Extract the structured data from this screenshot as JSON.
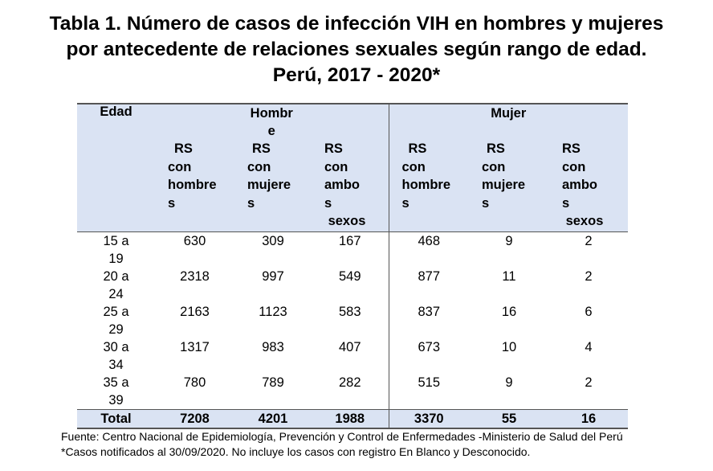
{
  "title": {
    "line1": "Tabla 1. Número de casos de infección VIH en hombres y mujeres",
    "line2": "por antecedente de relaciones sexuales según rango de edad.",
    "line3": "Perú, 2017 - 2020*"
  },
  "table": {
    "edad_label": "Edad",
    "groups": [
      {
        "label_lines": [
          "Hombr",
          "e"
        ]
      },
      {
        "label_lines": [
          "Mujer"
        ]
      }
    ],
    "subheaders": [
      {
        "lines": [
          "RS",
          "con",
          "hombre",
          "s"
        ]
      },
      {
        "lines": [
          "RS",
          "con",
          "mujere",
          "s"
        ]
      },
      {
        "lines": [
          "RS",
          "con",
          "ambo",
          "s",
          " sexos"
        ]
      },
      {
        "lines": [
          "RS",
          "con",
          "hombre",
          "s"
        ]
      },
      {
        "lines": [
          "RS",
          "con",
          "mujere",
          "s"
        ]
      },
      {
        "lines": [
          "RS",
          "con",
          "ambo",
          "s",
          " sexos"
        ]
      }
    ],
    "rows": [
      {
        "age": [
          "15 a",
          "19"
        ],
        "values": [
          "630",
          "309",
          "167",
          "468",
          "9",
          "2"
        ]
      },
      {
        "age": [
          "20 a",
          "24"
        ],
        "values": [
          "2318",
          "997",
          "549",
          "877",
          "11",
          "2"
        ]
      },
      {
        "age": [
          "25 a",
          "29"
        ],
        "values": [
          "2163",
          "1123",
          "583",
          "837",
          "16",
          "6"
        ]
      },
      {
        "age": [
          "30 a",
          "34"
        ],
        "values": [
          "1317",
          "983",
          "407",
          "673",
          "10",
          "4"
        ]
      },
      {
        "age": [
          "35 a",
          "39"
        ],
        "values": [
          "780",
          "789",
          "282",
          "515",
          "9",
          "2"
        ]
      }
    ],
    "total": {
      "label": "Total",
      "values": [
        "7208",
        "4201",
        "1988",
        "3370",
        "55",
        "16"
      ]
    }
  },
  "notes": {
    "source": "Fuente: Centro Nacional de Epidemiología, Prevención y Control de Enfermedades -Ministerio de Salud del Perú",
    "footnote": "*Casos notificados al 30/09/2020. No incluye los casos con registro En Blanco y Desconocido."
  }
}
